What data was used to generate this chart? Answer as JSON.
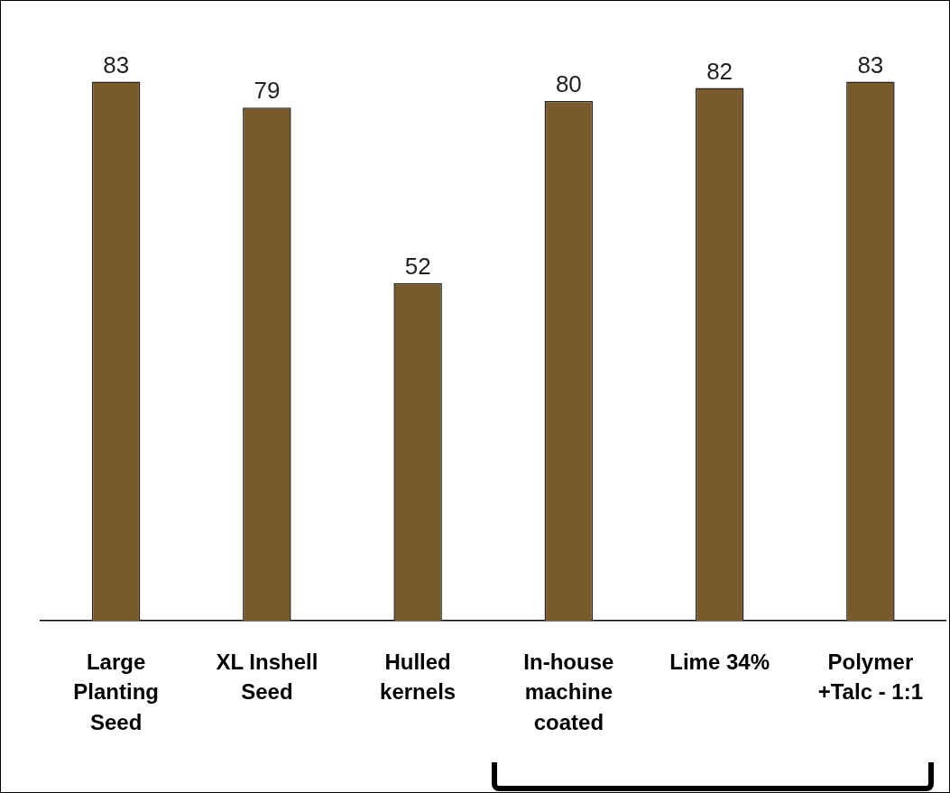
{
  "chart_data": {
    "type": "bar",
    "categories": [
      "Large Planting Seed",
      "XL Inshell Seed",
      "Hulled kernels",
      "In-house machine coated",
      "Lime 34%",
      "Polymer +Talc - 1:1"
    ],
    "values": [
      83,
      79,
      52,
      80,
      82,
      83
    ],
    "color": "#785a2b",
    "data_labels": true,
    "grid": false,
    "legend": false
  }
}
